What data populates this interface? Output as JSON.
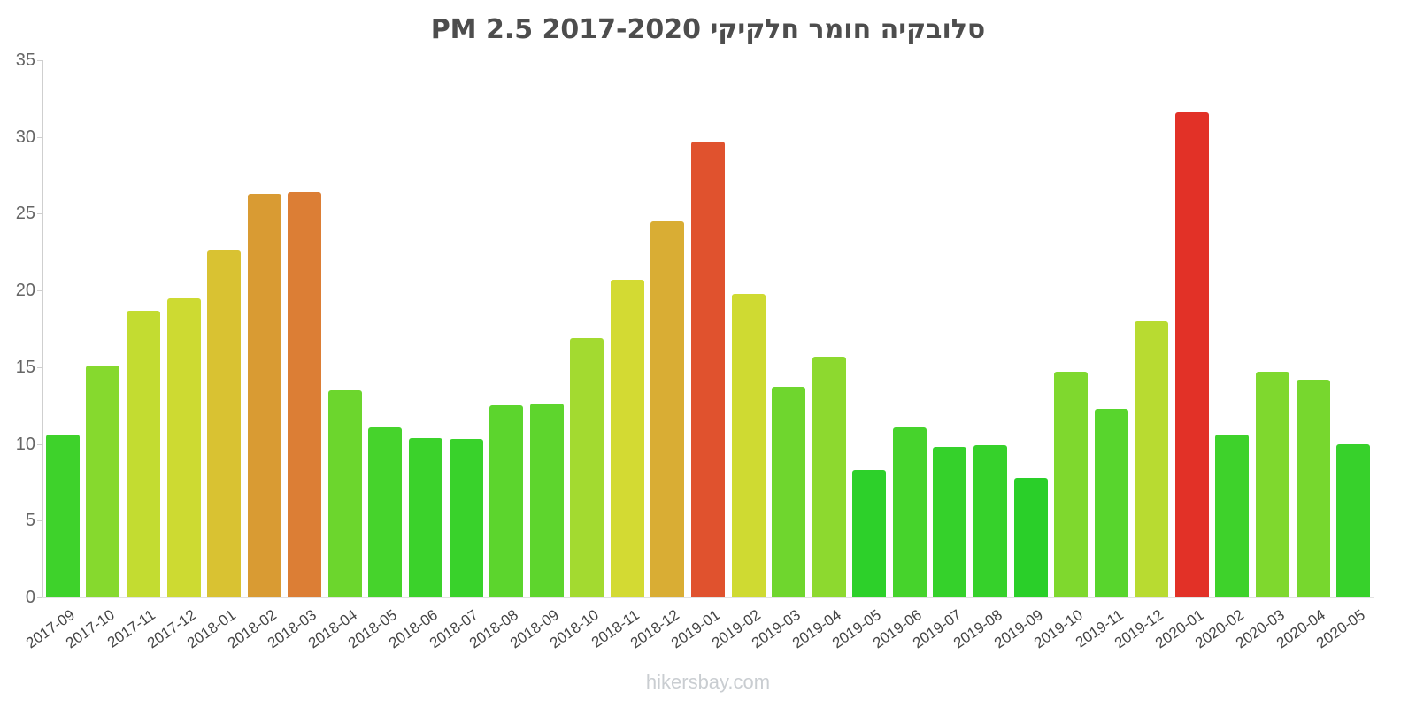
{
  "page": {
    "footer": "hikersbay.com"
  },
  "chart_data": {
    "type": "bar",
    "title": "סלובקיה חומר חלקיקי PM 2.5 2017-2020",
    "xlabel": "",
    "ylabel": "",
    "ylim": [
      0,
      35
    ],
    "yticks": [
      0,
      5,
      10,
      15,
      20,
      25,
      30,
      35
    ],
    "grid": false,
    "legend": false,
    "categories": [
      "2017-09",
      "2017-10",
      "2017-11",
      "2017-12",
      "2018-01",
      "2018-02",
      "2018-03",
      "2018-04",
      "2018-05",
      "2018-06",
      "2018-07",
      "2018-08",
      "2018-09",
      "2018-10",
      "2018-11",
      "2018-12",
      "2019-01",
      "2019-02",
      "2019-03",
      "2019-04",
      "2019-05",
      "2019-06",
      "2019-07",
      "2019-08",
      "2019-09",
      "2019-10",
      "2019-11",
      "2019-12",
      "2020-01",
      "2020-02",
      "2020-03",
      "2020-04",
      "2020-05"
    ],
    "values": [
      10.6,
      15.1,
      18.7,
      19.5,
      22.6,
      26.3,
      26.4,
      13.5,
      11.1,
      10.4,
      10.3,
      12.5,
      12.6,
      16.9,
      20.7,
      24.5,
      29.7,
      19.8,
      13.7,
      15.7,
      8.3,
      11.1,
      9.8,
      9.9,
      7.8,
      14.7,
      12.3,
      18.0,
      31.6,
      10.6,
      14.7,
      14.2,
      10.0
    ],
    "colors": [
      "#3ed22b",
      "#86d92e",
      "#c3dc31",
      "#cdda32",
      "#d9c232",
      "#d99b33",
      "#dc7e35",
      "#6cd62d",
      "#46d32c",
      "#3bd22b",
      "#39d22b",
      "#5cd52d",
      "#5ed52d",
      "#a3da30",
      "#d3da33",
      "#d9ad34",
      "#e0522e",
      "#cfda32",
      "#6fd62e",
      "#8dd92f",
      "#2dd02a",
      "#46d32c",
      "#35d12b",
      "#36d12b",
      "#2acf29",
      "#7fd82e",
      "#58d52d",
      "#b8db31",
      "#e23127",
      "#3ed22b",
      "#7fd82e",
      "#77d72e",
      "#37d12b"
    ]
  }
}
